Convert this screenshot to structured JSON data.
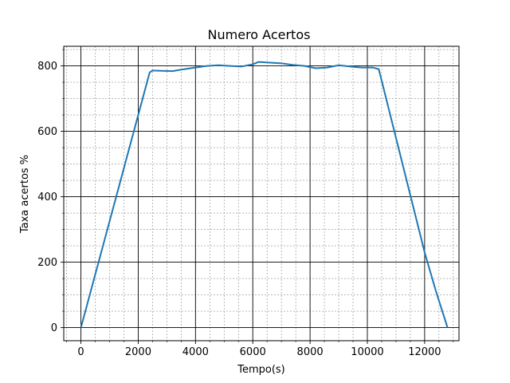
{
  "chart_data": {
    "type": "line",
    "title": "Numero Acertos",
    "xlabel": "Tempo(s)",
    "ylabel": "Taxa acertos %",
    "xlim": [
      -600,
      13200
    ],
    "ylim": [
      -40,
      860
    ],
    "xticks": [
      0,
      2000,
      4000,
      6000,
      8000,
      10000,
      12000
    ],
    "xtick_labels": [
      "0",
      "2000",
      "4000",
      "6000",
      "8000",
      "10000",
      "12000"
    ],
    "yticks": [
      0,
      200,
      400,
      600,
      800
    ],
    "ytick_labels": [
      "0",
      "200",
      "400",
      "600",
      "800"
    ],
    "grid": true,
    "minor_grid": true,
    "legend": "none",
    "series": [
      {
        "color": "#1f77b4",
        "x": [
          0,
          400,
          800,
          1200,
          1600,
          2000,
          2400,
          2500,
          2800,
          3200,
          3600,
          4000,
          4400,
          4800,
          5200,
          5600,
          6000,
          6200,
          6600,
          7000,
          7400,
          7800,
          8200,
          8600,
          9000,
          9400,
          9800,
          10200,
          10400,
          10800,
          11200,
          11600,
          12000,
          12400,
          12800
        ],
        "y": [
          0,
          130,
          260,
          390,
          520,
          650,
          780,
          786,
          785,
          784,
          790,
          795,
          800,
          802,
          800,
          798,
          805,
          812,
          810,
          808,
          803,
          800,
          793,
          795,
          802,
          798,
          795,
          795,
          790,
          650,
          510,
          370,
          230,
          110,
          0
        ]
      }
    ]
  }
}
